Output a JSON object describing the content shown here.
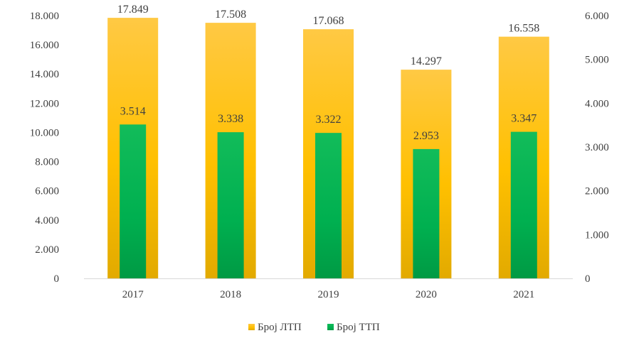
{
  "chart_data": {
    "type": "bar",
    "title": "",
    "xlabel": "",
    "ylabel": "",
    "categories": [
      "2017",
      "2018",
      "2019",
      "2020",
      "2021"
    ],
    "series": [
      {
        "name": "Број ЛТП",
        "axis": "left",
        "color": "#FFC000",
        "values": [
          17849,
          17508,
          17068,
          14297,
          16558
        ],
        "labels": [
          "17.849",
          "17.508",
          "17.068",
          "14.297",
          "16.558"
        ]
      },
      {
        "name": "Број ТТП",
        "axis": "right",
        "color": "#00B050",
        "values": [
          3514,
          3338,
          3322,
          2953,
          3347
        ],
        "labels": [
          "3.514",
          "3.338",
          "3.322",
          "2.953",
          "3.347"
        ]
      }
    ],
    "ylim": [
      0,
      18000
    ],
    "y2lim": [
      0,
      6000
    ],
    "yticks": [
      0,
      2000,
      4000,
      6000,
      8000,
      10000,
      12000,
      14000,
      16000,
      18000
    ],
    "ytick_labels": [
      "0",
      "2.000",
      "4.000",
      "6.000",
      "8.000",
      "10.000",
      "12.000",
      "14.000",
      "16.000",
      "18.000"
    ],
    "y2ticks": [
      0,
      1000,
      2000,
      3000,
      4000,
      5000,
      6000
    ],
    "y2tick_labels": [
      "0",
      "1.000",
      "2.000",
      "3.000",
      "4.000",
      "5.000",
      "6.000"
    ],
    "legend": "bottom",
    "grid": false
  }
}
